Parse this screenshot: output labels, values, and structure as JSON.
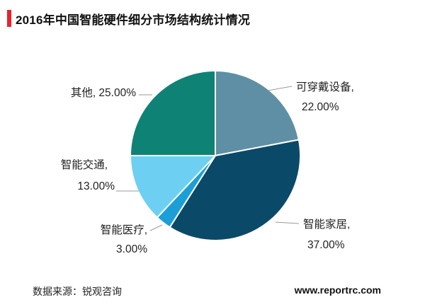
{
  "header": {
    "title": "2016年中国智能硬件细分市场结构统计情况",
    "accent_color": "#e8232b"
  },
  "footer": {
    "source": "数据来源：锐观咨询",
    "website": "www.reportrc.com"
  },
  "chart_data": {
    "type": "pie",
    "title": "2016年中国智能硬件细分市场结构统计情况",
    "start_angle_deg": 0,
    "direction": "clockwise",
    "slices": [
      {
        "name": "可穿戴设备",
        "value": 22.0,
        "label": "22.00%",
        "color": "#5e8fa5"
      },
      {
        "name": "智能家居",
        "value": 37.0,
        "label": "37.00%",
        "color": "#0a4a68"
      },
      {
        "name": "智能医疗",
        "value": 3.0,
        "label": "3.00%",
        "color": "#1b9fd6"
      },
      {
        "name": "智能交通",
        "value": 13.0,
        "label": "13.00%",
        "color": "#6dd0f2"
      },
      {
        "name": "其他",
        "value": 25.0,
        "label": "25.00%",
        "color": "#0f8276"
      }
    ]
  }
}
